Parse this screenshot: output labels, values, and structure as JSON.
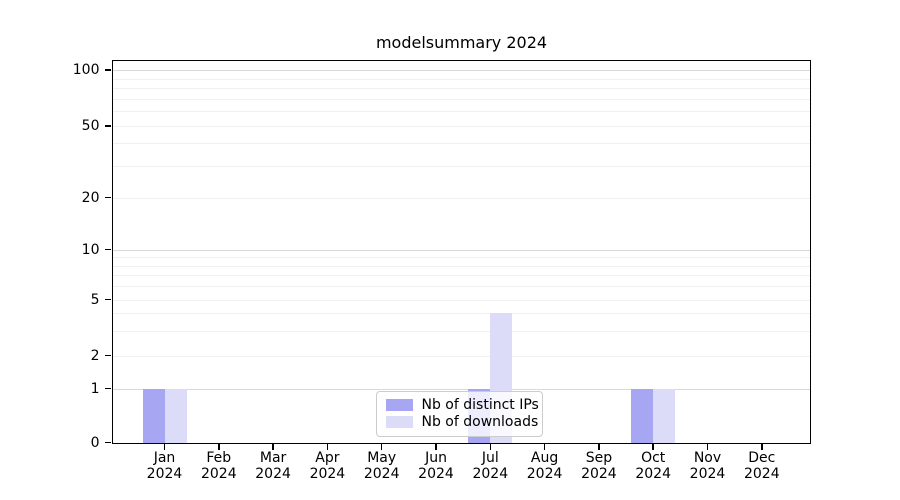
{
  "title": "modelsummary 2024",
  "chart_data": {
    "type": "bar",
    "title": "modelsummary 2024",
    "categories": [
      {
        "month": "Jan",
        "year": "2024"
      },
      {
        "month": "Feb",
        "year": "2024"
      },
      {
        "month": "Mar",
        "year": "2024"
      },
      {
        "month": "Apr",
        "year": "2024"
      },
      {
        "month": "May",
        "year": "2024"
      },
      {
        "month": "Jun",
        "year": "2024"
      },
      {
        "month": "Jul",
        "year": "2024"
      },
      {
        "month": "Aug",
        "year": "2024"
      },
      {
        "month": "Sep",
        "year": "2024"
      },
      {
        "month": "Oct",
        "year": "2024"
      },
      {
        "month": "Nov",
        "year": "2024"
      },
      {
        "month": "Dec",
        "year": "2024"
      }
    ],
    "series": [
      {
        "name": "Nb of distinct IPs",
        "color": "#a6a6f2",
        "values": [
          1,
          0,
          0,
          0,
          0,
          0,
          1,
          0,
          0,
          1,
          0,
          0
        ]
      },
      {
        "name": "Nb of downloads",
        "color": "#dcdcf8",
        "values": [
          1,
          0,
          0,
          0,
          0,
          0,
          4,
          0,
          0,
          1,
          0,
          0
        ]
      }
    ],
    "xlabel": "",
    "ylabel": "",
    "yaxis": {
      "scale": "asinh-log",
      "range": [
        0,
        117
      ],
      "ticks": [
        {
          "label": "100",
          "value": 100
        },
        {
          "label": "50",
          "value": 50
        },
        {
          "label": "20",
          "value": 20
        },
        {
          "label": "10",
          "value": 10
        },
        {
          "label": "5",
          "value": 5
        },
        {
          "label": "2",
          "value": 2
        },
        {
          "label": "1",
          "value": 1
        },
        {
          "label": "0",
          "value": 0
        }
      ],
      "major_gridlines": [
        1,
        10,
        100
      ],
      "minor_gridlines": [
        2,
        3,
        4,
        5,
        6,
        7,
        8,
        9,
        20,
        30,
        40,
        50,
        60,
        70,
        80,
        90
      ]
    },
    "grid": "horizontal",
    "legend_position": "lower center",
    "legend": [
      {
        "label": "Nb of distinct IPs",
        "color": "#a6a6f2"
      },
      {
        "label": "Nb of downloads",
        "color": "#dcdcf8"
      }
    ]
  },
  "colors": {
    "background": "#ffffff",
    "spine": "#000000",
    "grid_major": "#d9d9d9",
    "grid_minor": "#f0f0f0",
    "bar_distinct_ips": "#a6a6f2",
    "bar_downloads": "#dcdcf8"
  }
}
